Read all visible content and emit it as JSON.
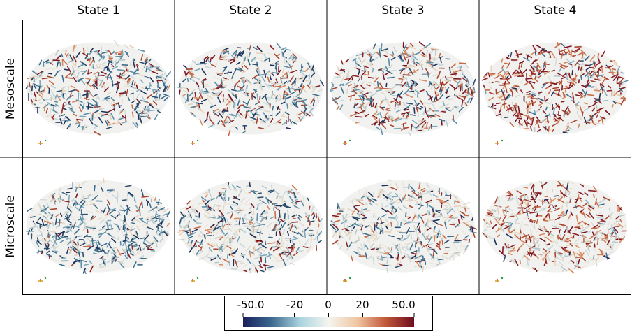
{
  "columns": [
    {
      "label": "State 1"
    },
    {
      "label": "State 2"
    },
    {
      "label": "State 3"
    },
    {
      "label": "State 4"
    }
  ],
  "rows": [
    {
      "label": "Mesoscale",
      "cells": [
        {
          "mix": {
            "blue": 0.45,
            "light": 0.35,
            "red": 0.2
          }
        },
        {
          "mix": {
            "blue": 0.35,
            "light": 0.35,
            "red": 0.3
          }
        },
        {
          "mix": {
            "blue": 0.3,
            "light": 0.3,
            "red": 0.4
          }
        },
        {
          "mix": {
            "blue": 0.1,
            "light": 0.15,
            "red": 0.75
          }
        }
      ]
    },
    {
      "label": "Microscale",
      "cells": [
        {
          "mix": {
            "blue": 0.55,
            "light": 0.4,
            "red": 0.05
          }
        },
        {
          "mix": {
            "blue": 0.35,
            "light": 0.5,
            "red": 0.15
          }
        },
        {
          "mix": {
            "blue": 0.25,
            "light": 0.55,
            "red": 0.2
          }
        },
        {
          "mix": {
            "blue": 0.05,
            "light": 0.45,
            "red": 0.5
          }
        }
      ]
    }
  ],
  "colorbar": {
    "tick_labels": [
      "-50.0",
      "-20",
      "0",
      "20",
      "50.0"
    ],
    "tick_values": [
      -50,
      -20,
      0,
      20,
      50
    ],
    "range": [
      -50,
      50
    ],
    "colors": [
      "#1a1f5c",
      "#3d6a8f",
      "#a9d3df",
      "#f5f5ef",
      "#f0c6a2",
      "#c1583a",
      "#6e0d1e"
    ]
  }
}
